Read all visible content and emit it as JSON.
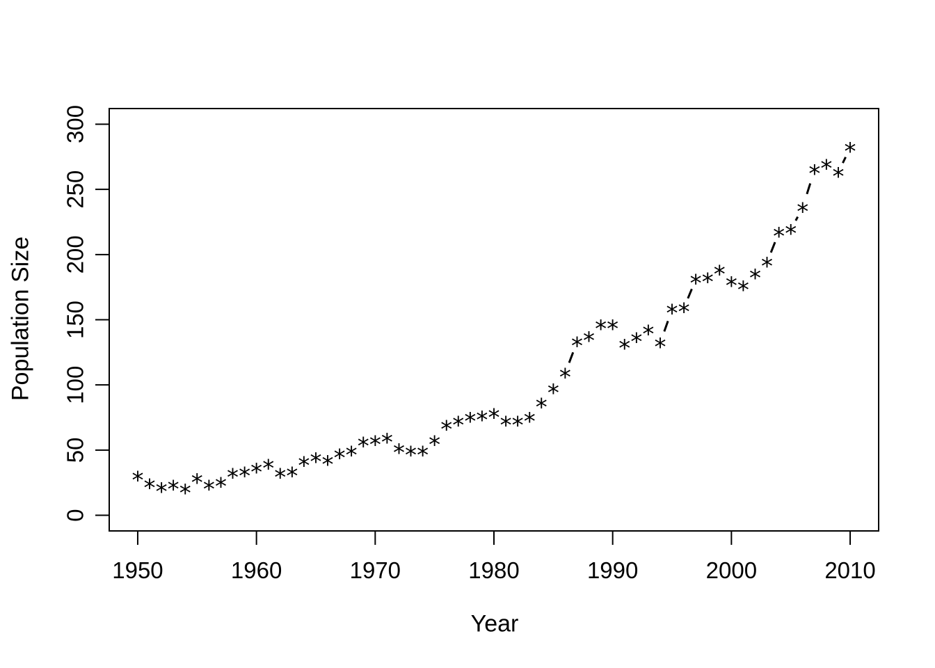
{
  "figure": {
    "background_color": "#ffffff",
    "axis_color": "#000000",
    "point_color": "#000000",
    "line_color": "#000000"
  },
  "chart_data": {
    "type": "line",
    "title": "",
    "xlabel": "Year",
    "ylabel": "Population Size",
    "marker": "*",
    "line_style": "dashed",
    "grid": false,
    "legend_position": "none",
    "xticks": [
      1950,
      1960,
      1970,
      1980,
      1990,
      2000,
      2010
    ],
    "yticks": [
      0,
      50,
      100,
      150,
      200,
      250,
      300
    ],
    "xlim": [
      1947.6,
      2012.4
    ],
    "ylim": [
      -12,
      312
    ],
    "x": [
      1950,
      1951,
      1952,
      1953,
      1954,
      1955,
      1956,
      1957,
      1958,
      1959,
      1960,
      1961,
      1962,
      1963,
      1964,
      1965,
      1966,
      1967,
      1968,
      1969,
      1970,
      1971,
      1972,
      1973,
      1974,
      1975,
      1976,
      1977,
      1978,
      1979,
      1980,
      1981,
      1982,
      1983,
      1984,
      1985,
      1986,
      1987,
      1988,
      1989,
      1990,
      1991,
      1992,
      1993,
      1994,
      1995,
      1996,
      1997,
      1998,
      1999,
      2000,
      2001,
      2002,
      2003,
      2004,
      2005,
      2006,
      2007,
      2008,
      2009,
      2010
    ],
    "values": [
      30,
      24,
      21,
      23,
      20,
      28,
      23,
      25,
      32,
      33,
      36,
      39,
      32,
      33,
      41,
      44,
      42,
      47,
      49,
      56,
      57,
      59,
      51,
      49,
      49,
      57,
      69,
      72,
      75,
      76,
      78,
      72,
      72,
      75,
      86,
      97,
      109,
      133,
      137,
      146,
      146,
      131,
      136,
      142,
      132,
      158,
      159,
      181,
      182,
      188,
      179,
      176,
      185,
      194,
      217,
      219,
      236,
      265,
      269,
      263,
      282
    ]
  }
}
